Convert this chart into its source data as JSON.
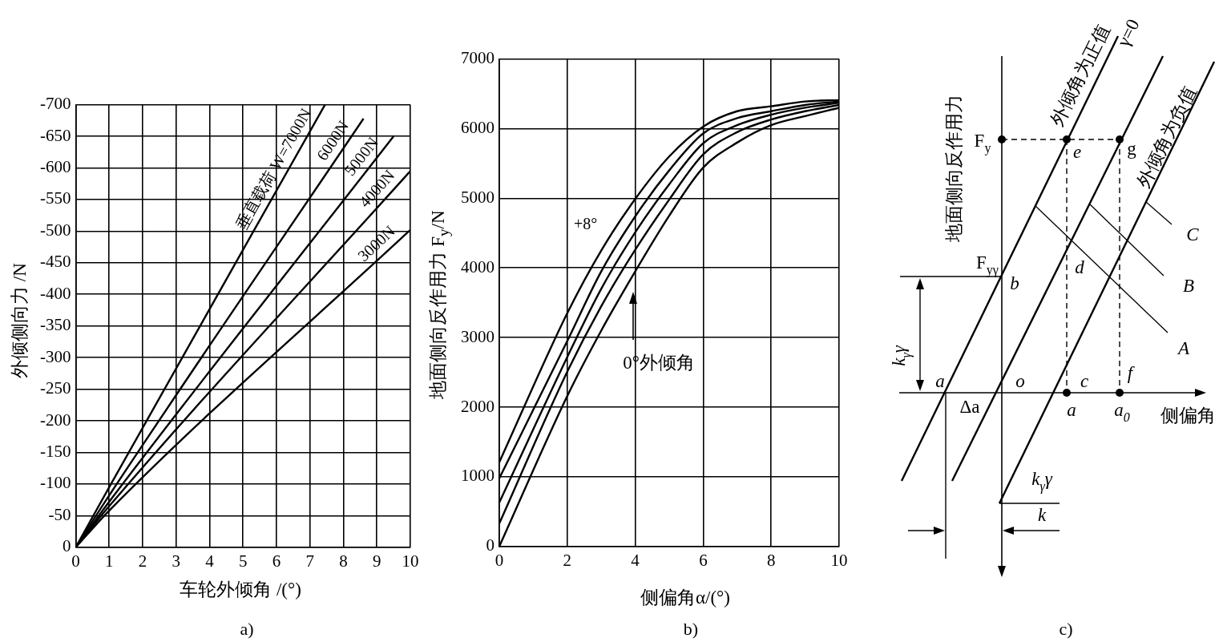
{
  "chart_data": [
    {
      "type": "line",
      "title": "a)",
      "xlabel": "车轮外倾角 /(°)",
      "ylabel": "外倾侧向力 /N",
      "xlim": [
        0,
        10
      ],
      "xticks": [
        0,
        1,
        2,
        3,
        4,
        5,
        6,
        7,
        8,
        9,
        10
      ],
      "ylim": [
        0,
        -700
      ],
      "yticks": [
        0,
        -50,
        -100,
        -150,
        -200,
        -250,
        -300,
        -350,
        -400,
        -450,
        -500,
        -550,
        -600,
        -650,
        -700
      ],
      "grid": true,
      "series": [
        {
          "name": "垂直载荷 W=7000N",
          "color": "#000000",
          "x": [
            0,
            1,
            7.45
          ],
          "values": [
            0,
            -95,
            -700
          ]
        },
        {
          "name": "6000N",
          "color": "#000000",
          "x": [
            0,
            1,
            8.6
          ],
          "values": [
            0,
            -82,
            -678
          ]
        },
        {
          "name": "5000N",
          "color": "#000000",
          "x": [
            0,
            1,
            9.5
          ],
          "values": [
            0,
            -72,
            -650
          ]
        },
        {
          "name": "4000N",
          "color": "#000000",
          "x": [
            0,
            1,
            10
          ],
          "values": [
            0,
            -65,
            -595
          ]
        },
        {
          "name": "3000N",
          "color": "#000000",
          "x": [
            0,
            1,
            10
          ],
          "values": [
            0,
            -58,
            -502
          ]
        }
      ]
    },
    {
      "type": "line",
      "title": "b)",
      "xlabel": "侧偏角α/(°)",
      "ylabel": "地面侧向反作用力 F$_{y}$/N",
      "xlim": [
        0,
        10
      ],
      "xticks": [
        0,
        2,
        4,
        6,
        8,
        10
      ],
      "ylim": [
        0,
        7000
      ],
      "yticks": [
        0,
        1000,
        2000,
        3000,
        4000,
        5000,
        6000,
        7000
      ],
      "grid": true,
      "x": [
        0,
        2,
        3,
        4,
        5,
        6,
        7,
        8,
        9,
        10
      ],
      "series": [
        {
          "name": "+8°",
          "color": "#000000",
          "values": [
            1210,
            3350,
            4250,
            4990,
            5600,
            6030,
            6250,
            6320,
            6390,
            6410
          ]
        },
        {
          "color": "#000000",
          "values": [
            980,
            2950,
            3950,
            4740,
            5400,
            5930,
            6150,
            6250,
            6340,
            6390
          ]
        },
        {
          "color": "#000000",
          "values": [
            630,
            2720,
            3700,
            4510,
            5200,
            5790,
            6050,
            6200,
            6300,
            6370
          ]
        },
        {
          "color": "#000000",
          "values": [
            330,
            2510,
            3450,
            4260,
            4980,
            5630,
            5950,
            6130,
            6250,
            6340
          ]
        },
        {
          "color": "#000000",
          "values": [
            0,
            2160,
            3100,
            3950,
            4750,
            5440,
            5800,
            6050,
            6180,
            6300
          ]
        }
      ],
      "annotations": [
        "0°外倾角"
      ]
    },
    {
      "type": "other",
      "title": "c)",
      "xlabel": "侧偏角",
      "ylabel": "地面侧向反作用力",
      "annotations": [
        "外倾角为正值",
        "γ=0",
        "外倾角为负值",
        "F$_{y}$",
        "e",
        "g",
        "F$_{yγ}$",
        "b",
        "d",
        "a",
        "o",
        "Δa",
        "c",
        "a",
        "a$_{0}$",
        "f",
        "k$_{γ}$γ",
        "k$_{γ}$γ",
        "k",
        "A",
        "B",
        "C"
      ]
    }
  ]
}
